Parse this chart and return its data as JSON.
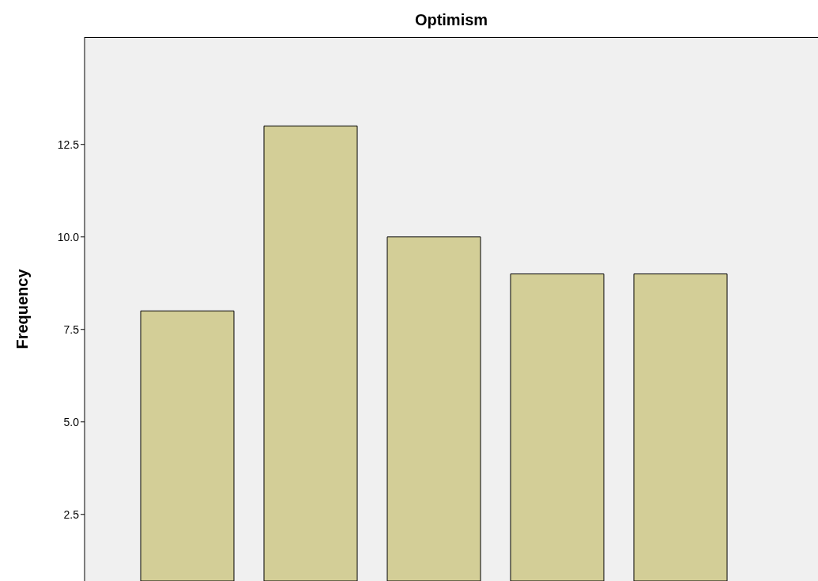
{
  "chart_data": {
    "type": "bar",
    "title": "Optimism",
    "ylabel": "Frequency",
    "categories": [
      null,
      null,
      null,
      null,
      null
    ],
    "values": [
      8,
      13,
      10,
      9,
      9
    ],
    "color": "#d3ce97",
    "ylim": [
      0.7,
      15.4
    ],
    "yticks": [
      {
        "value": 2.5,
        "label": "2.5"
      },
      {
        "value": 5,
        "label": "5.0"
      },
      {
        "value": 7.5,
        "label": "7.5"
      },
      {
        "value": 10,
        "label": "10.0"
      },
      {
        "value": 12.5,
        "label": "12.5"
      }
    ],
    "tick_labels": "y",
    "grid": false
  }
}
